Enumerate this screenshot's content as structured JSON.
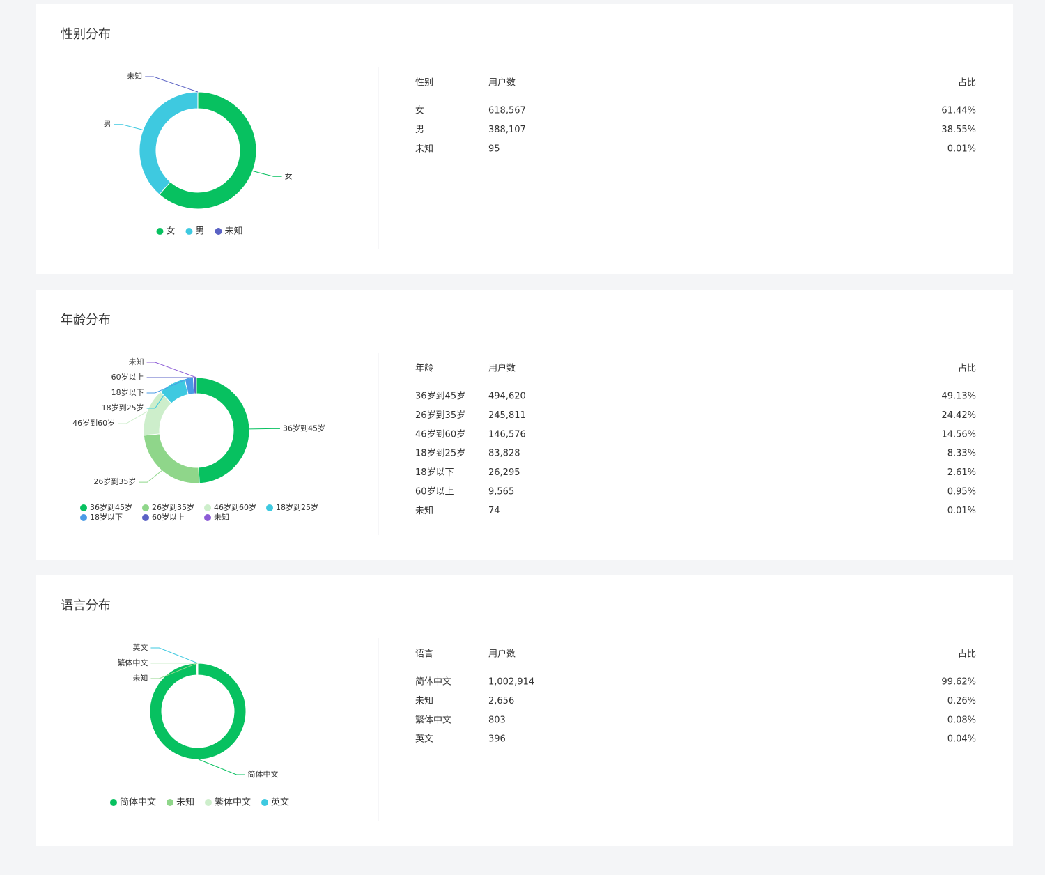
{
  "chart_data": [
    {
      "type": "pie",
      "donut": true,
      "title": "性别分布",
      "categories": [
        "女",
        "男",
        "未知"
      ],
      "values": [
        618567,
        388107,
        95
      ],
      "value_labels": [
        "618,567",
        "388,107",
        "95"
      ],
      "shares": [
        61.44,
        38.55,
        0.01
      ],
      "share_labels": [
        "61.44%",
        "38.55%",
        "0.01%"
      ],
      "colors": [
        "#07c160",
        "#3ec9e0",
        "#5a62c4"
      ],
      "table_headers": [
        "性别",
        "用户数",
        "占比"
      ]
    },
    {
      "type": "pie",
      "donut": true,
      "title": "年龄分布",
      "categories": [
        "36岁到45岁",
        "26岁到35岁",
        "46岁到60岁",
        "18岁到25岁",
        "18岁以下",
        "60岁以上",
        "未知"
      ],
      "values": [
        494620,
        245811,
        146576,
        83828,
        26295,
        9565,
        74
      ],
      "value_labels": [
        "494,620",
        "245,811",
        "146,576",
        "83,828",
        "26,295",
        "9,565",
        "74"
      ],
      "shares": [
        49.13,
        24.42,
        14.56,
        8.33,
        2.61,
        0.95,
        0.01
      ],
      "share_labels": [
        "49.13%",
        "24.42%",
        "14.56%",
        "8.33%",
        "2.61%",
        "0.95%",
        "0.01%"
      ],
      "colors": [
        "#07c160",
        "#8fd68a",
        "#cdeecb",
        "#3ec9e0",
        "#4a9be6",
        "#5a62c4",
        "#8c5cd6"
      ],
      "table_headers": [
        "年龄",
        "用户数",
        "占比"
      ]
    },
    {
      "type": "pie",
      "donut": true,
      "title": "语言分布",
      "categories": [
        "简体中文",
        "未知",
        "繁体中文",
        "英文"
      ],
      "values": [
        1002914,
        2656,
        803,
        396
      ],
      "value_labels": [
        "1,002,914",
        "2,656",
        "803",
        "396"
      ],
      "shares": [
        99.62,
        0.26,
        0.08,
        0.04
      ],
      "share_labels": [
        "99.62%",
        "0.26%",
        "0.08%",
        "0.04%"
      ],
      "colors": [
        "#07c160",
        "#8fd68a",
        "#cdeecb",
        "#3ec9e0"
      ],
      "table_headers": [
        "语言",
        "用户数",
        "占比"
      ]
    }
  ]
}
